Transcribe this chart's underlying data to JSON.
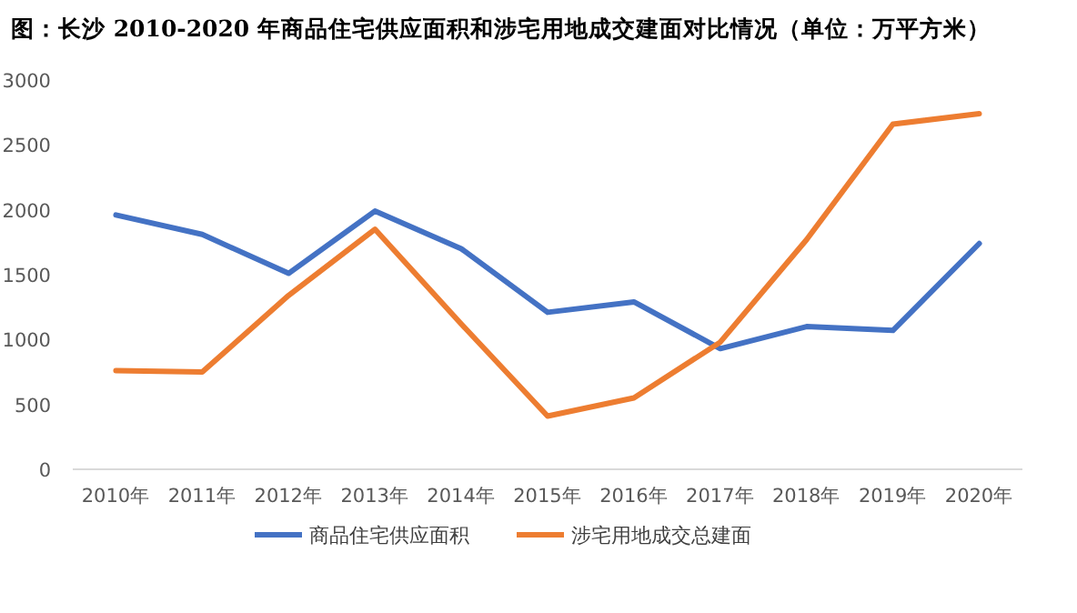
{
  "chart_data": {
    "type": "line",
    "title": "图：长沙 2010-2020 年商品住宅供应面积和涉宅用地成交建面对比情况（单位：万平方米）",
    "categories": [
      "2010年",
      "2011年",
      "2012年",
      "2013年",
      "2014年",
      "2015年",
      "2016年",
      "2017年",
      "2018年",
      "2019年",
      "2020年"
    ],
    "series": [
      {
        "name": "商品住宅供应面积",
        "color": "#4472c4",
        "values": [
          1960,
          1810,
          1510,
          1990,
          1700,
          1210,
          1290,
          930,
          1100,
          1070,
          1740
        ]
      },
      {
        "name": "涉宅用地成交总建面",
        "color": "#ed7d31",
        "values": [
          760,
          750,
          1340,
          1850,
          1120,
          410,
          550,
          980,
          1770,
          2660,
          2740
        ]
      }
    ],
    "ylim": [
      0,
      3000
    ],
    "yticks": [
      0,
      500,
      1000,
      1500,
      2000,
      2500,
      3000
    ],
    "grid": false,
    "legend": "bottom"
  }
}
